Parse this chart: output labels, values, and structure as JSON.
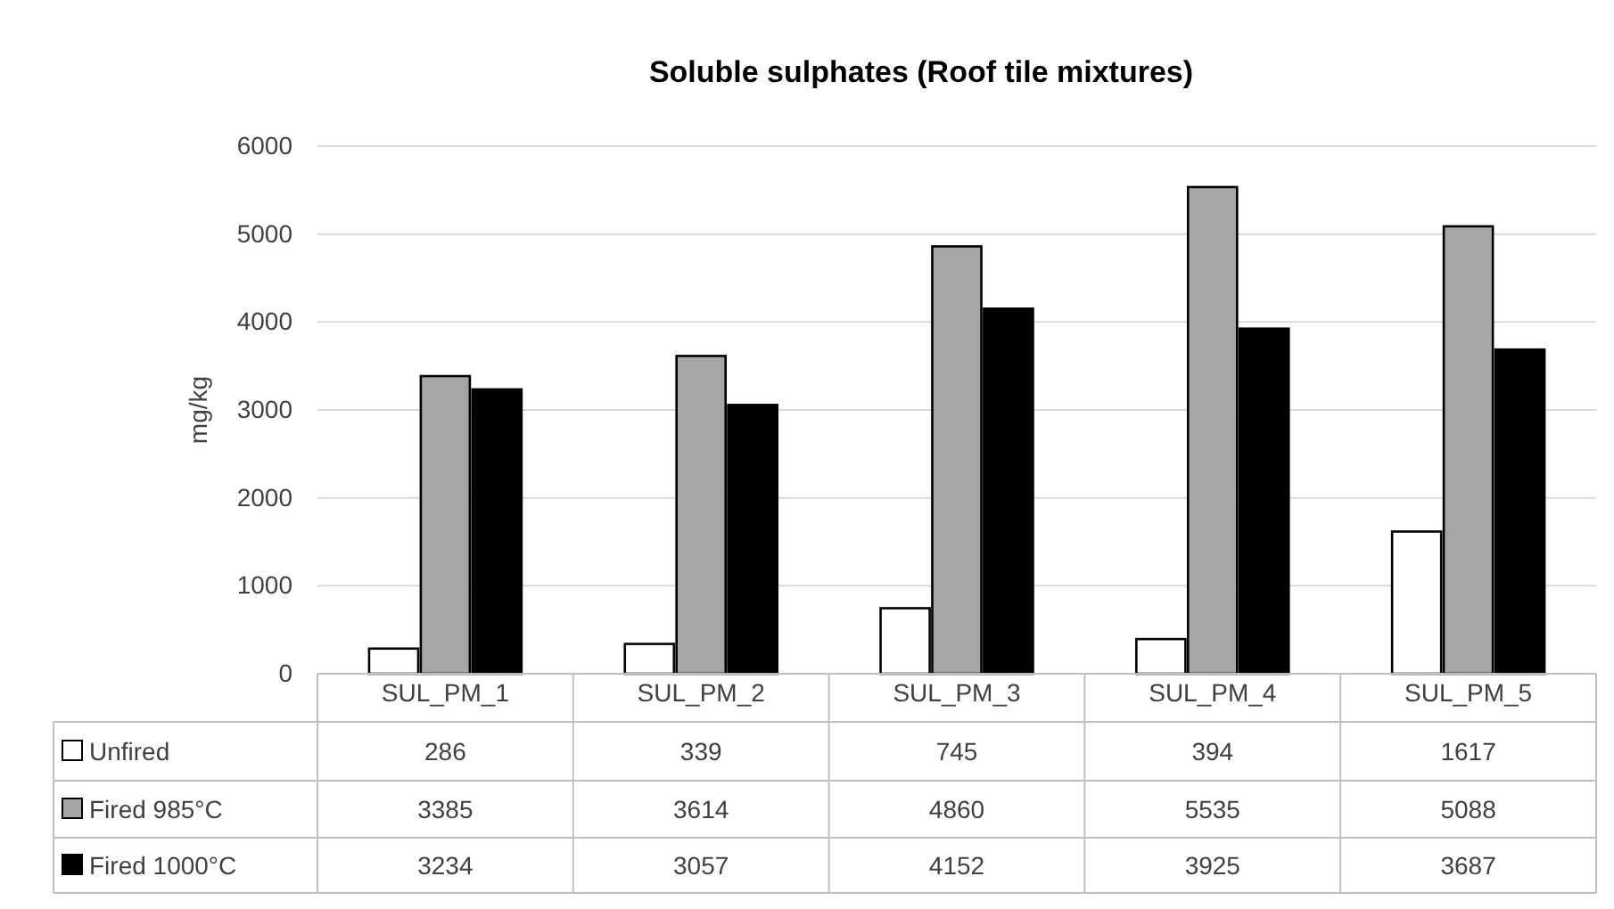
{
  "chart_data": {
    "type": "bar",
    "title": "Soluble sulphates (Roof tile mixtures)",
    "ylabel": "mg/kg",
    "categories": [
      "SUL_PM_1",
      "SUL_PM_2",
      "SUL_PM_3",
      "SUL_PM_4",
      "SUL_PM_5"
    ],
    "series": [
      {
        "name": "Unfired",
        "color": "#ffffff",
        "values": [
          286,
          339,
          745,
          394,
          1617
        ]
      },
      {
        "name": "Fired 985°C",
        "color": "#a6a6a6",
        "values": [
          3385,
          3614,
          4860,
          5535,
          5088
        ]
      },
      {
        "name": "Fired 1000°C",
        "color": "#000000",
        "values": [
          3234,
          3057,
          4152,
          3925,
          3687
        ]
      }
    ],
    "ylim": [
      0,
      6000
    ],
    "yticks": [
      0,
      1000,
      2000,
      3000,
      4000,
      5000,
      6000
    ],
    "grid": "y",
    "legend": "bottom",
    "data_labels": true
  }
}
